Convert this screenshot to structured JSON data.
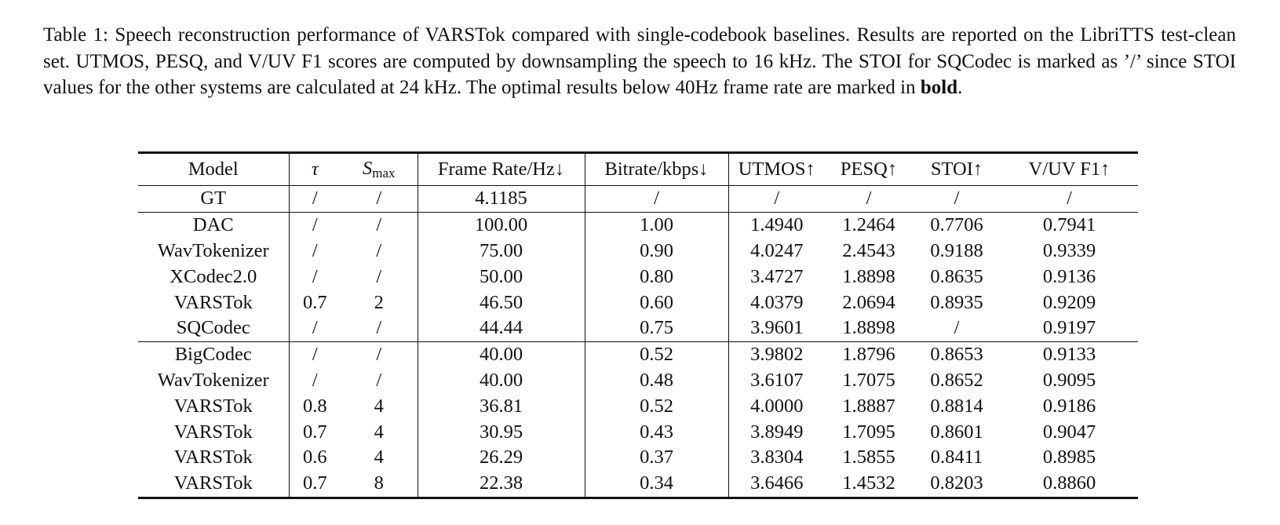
{
  "caption": {
    "prefix": "Table 1: Speech reconstruction performance of VARSTok compared with single-codebook baselines. Results are reported on the LibriTTS test-clean set. UTMOS, PESQ, and V/UV F1 scores are computed by downsampling the speech to 16 kHz. The STOI for SQCodec is marked as ’/’ since STOI values for the other systems are calculated at 24 kHz. The optimal results below 40Hz frame rate are marked in ",
    "bold_word": "bold",
    "suffix": "."
  },
  "table": {
    "headers": {
      "model": "Model",
      "tau": "τ",
      "smax_base": "S",
      "smax_sub": "max",
      "frame_rate": "Frame Rate/Hz↓",
      "bitrate": "Bitrate/kbps↓",
      "utmos": "UTMOS↑",
      "pesq": "PESQ↑",
      "stoi": "STOI↑",
      "vuv_f1": "V/UV F1↑"
    },
    "rows": [
      {
        "model": "GT",
        "tau": "/",
        "smax": "/",
        "frame_rate": "4.1185",
        "bitrate": "/",
        "utmos": "/",
        "pesq": "/",
        "stoi": "/",
        "vuv_f1": "/"
      },
      {
        "model": "DAC",
        "tau": "/",
        "smax": "/",
        "frame_rate": "100.00",
        "bitrate": "1.00",
        "utmos": "1.4940",
        "pesq": "1.2464",
        "stoi": "0.7706",
        "vuv_f1": "0.7941"
      },
      {
        "model": "WavTokenizer",
        "tau": "/",
        "smax": "/",
        "frame_rate": "75.00",
        "bitrate": "0.90",
        "utmos": "4.0247",
        "pesq": "2.4543",
        "stoi": "0.9188",
        "vuv_f1": "0.9339"
      },
      {
        "model": "XCodec2.0",
        "tau": "/",
        "smax": "/",
        "frame_rate": "50.00",
        "bitrate": "0.80",
        "utmos": "3.4727",
        "pesq": "1.8898",
        "stoi": "0.8635",
        "vuv_f1": "0.9136"
      },
      {
        "model": "VARSTok",
        "tau": "0.7",
        "smax": "2",
        "frame_rate": "46.50",
        "bitrate": "0.60",
        "utmos": "4.0379",
        "pesq": "2.0694",
        "stoi": "0.8935",
        "vuv_f1": "0.9209"
      },
      {
        "model": "SQCodec",
        "tau": "/",
        "smax": "/",
        "frame_rate": "44.44",
        "bitrate": "0.75",
        "utmos": "3.9601",
        "pesq": "1.8898",
        "stoi": "/",
        "vuv_f1": "0.9197"
      },
      {
        "model": "BigCodec",
        "tau": "/",
        "smax": "/",
        "frame_rate": "40.00",
        "bitrate": "0.52",
        "utmos": "3.9802",
        "pesq": "1.8796",
        "stoi": "0.8653",
        "vuv_f1": "0.9133"
      },
      {
        "model": "WavTokenizer",
        "tau": "/",
        "smax": "/",
        "frame_rate": "40.00",
        "bitrate": "0.48",
        "utmos": "3.6107",
        "pesq": "1.7075",
        "stoi": "0.8652",
        "vuv_f1": "0.9095"
      },
      {
        "model": "VARSTok",
        "tau": "0.8",
        "smax": "4",
        "frame_rate": "36.81",
        "bitrate": "0.52",
        "utmos": "4.0000",
        "pesq": "1.8887",
        "stoi": "0.8814",
        "vuv_f1": "0.9186"
      },
      {
        "model": "VARSTok",
        "tau": "0.7",
        "smax": "4",
        "frame_rate": "30.95",
        "bitrate": "0.43",
        "utmos": "3.8949",
        "pesq": "1.7095",
        "stoi": "0.8601",
        "vuv_f1": "0.9047"
      },
      {
        "model": "VARSTok",
        "tau": "0.6",
        "smax": "4",
        "frame_rate": "26.29",
        "bitrate": "0.37",
        "utmos": "3.8304",
        "pesq": "1.5855",
        "stoi": "0.8411",
        "vuv_f1": "0.8985"
      },
      {
        "model": "VARSTok",
        "tau": "0.7",
        "smax": "8",
        "frame_rate": "22.38",
        "bitrate": "0.34",
        "utmos": "3.6466",
        "pesq": "1.4532",
        "stoi": "0.8203",
        "vuv_f1": "0.8860"
      }
    ]
  }
}
